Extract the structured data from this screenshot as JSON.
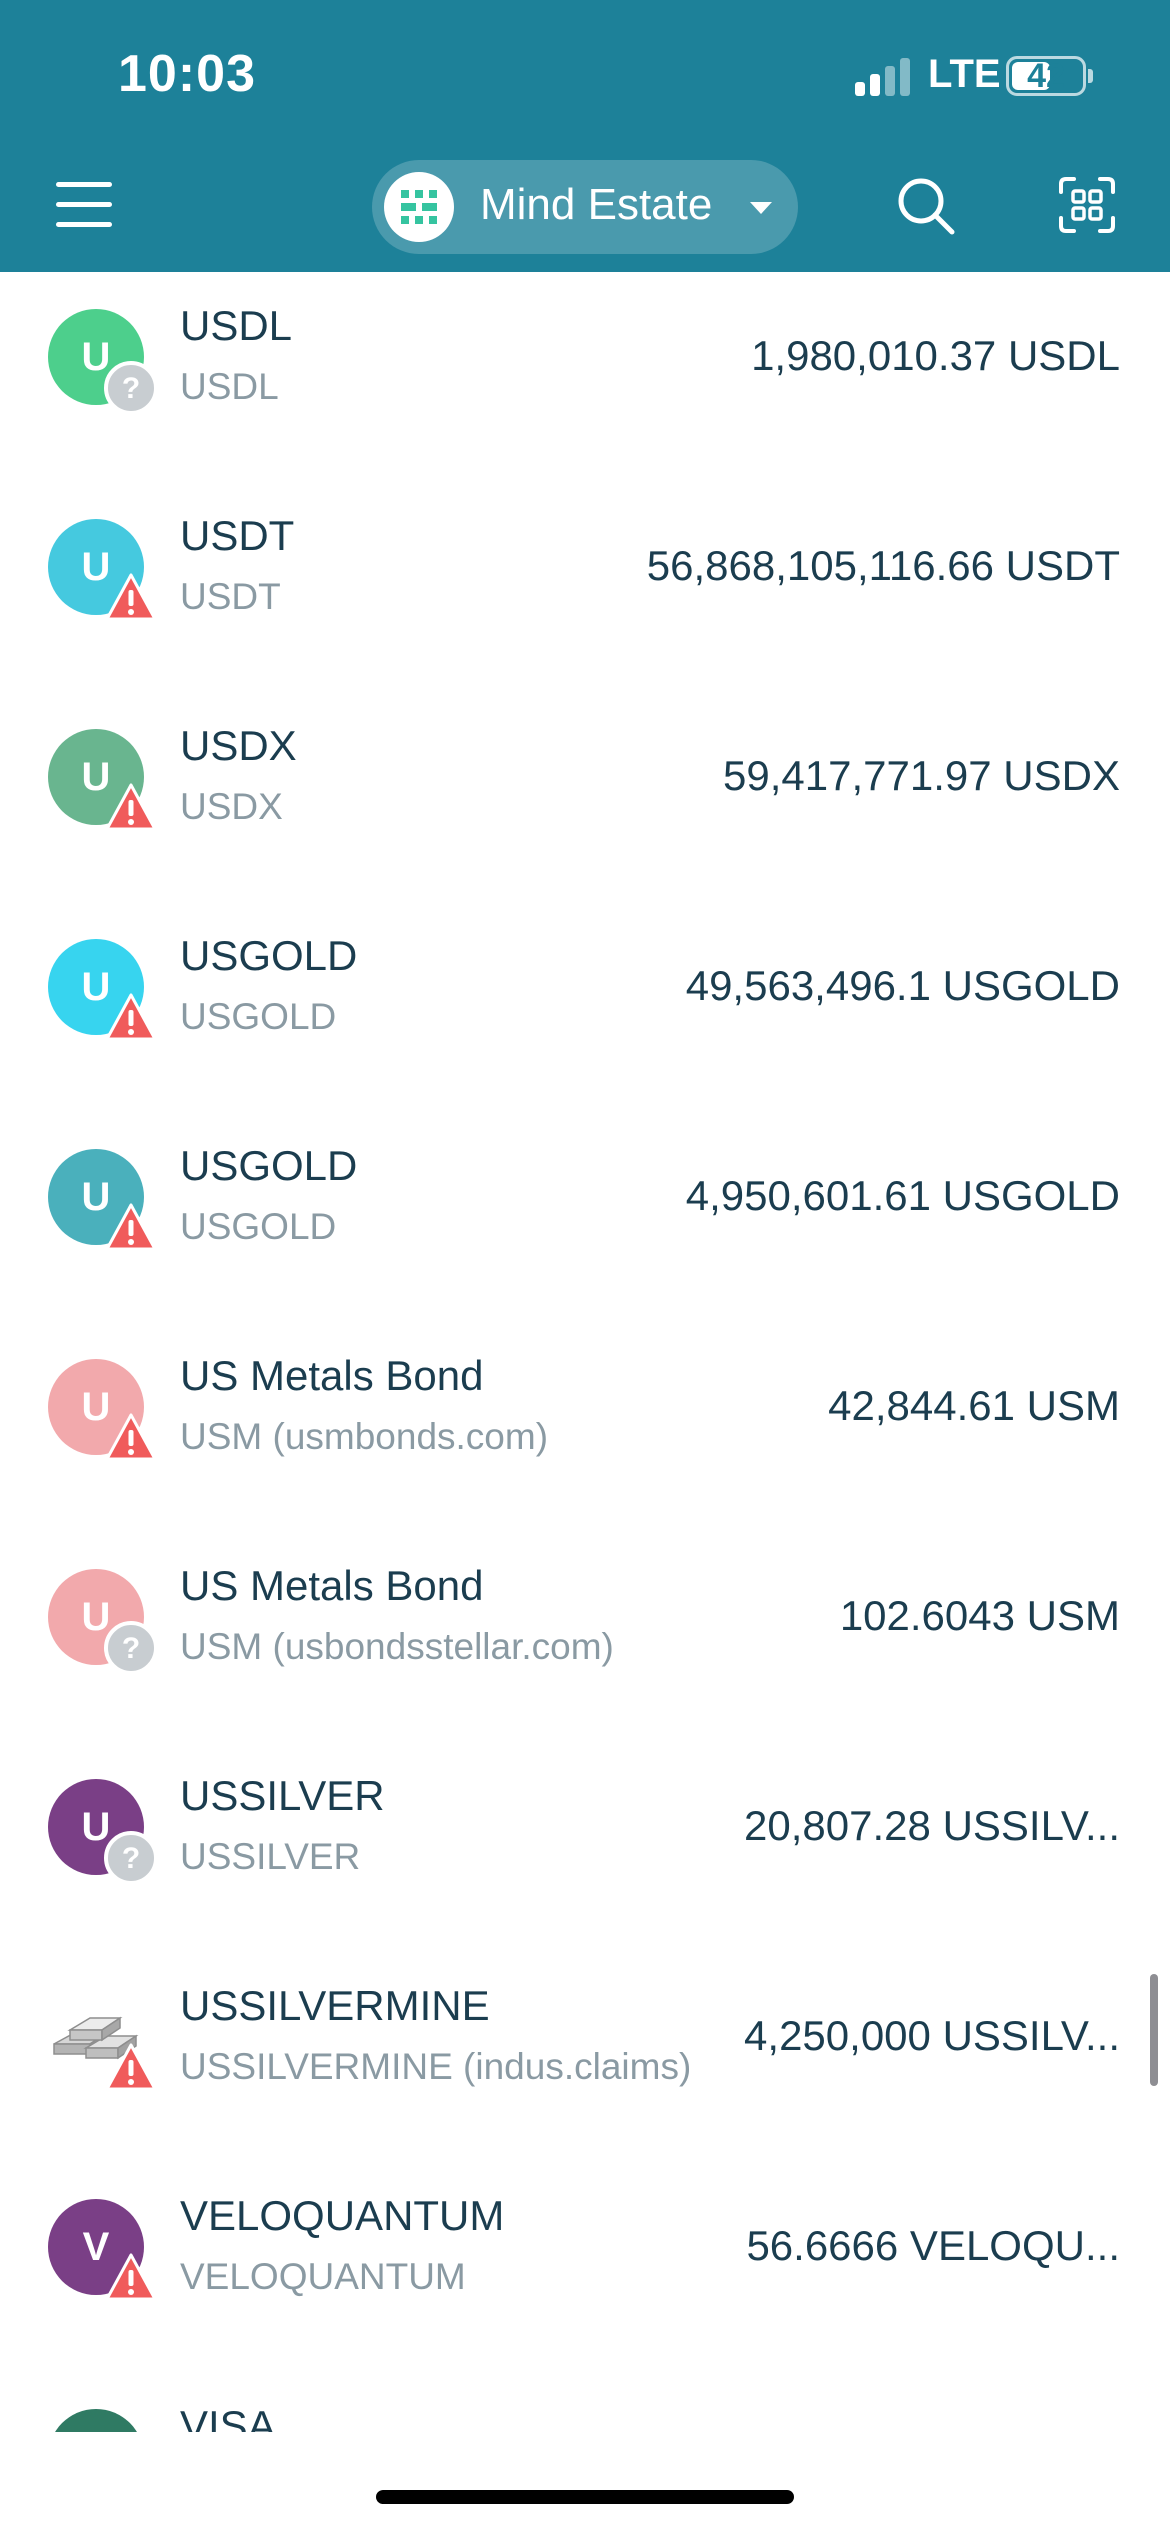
{
  "status_bar": {
    "time": "10:03",
    "network": "LTE",
    "battery": "42"
  },
  "header": {
    "account_name": "Mind Estate"
  },
  "assets": [
    {
      "name": "USDL",
      "sub": "USDL",
      "balance": "1,980,010.37 USDL",
      "icon_letter": "U",
      "color": "#4dcf8c",
      "badge": "question"
    },
    {
      "name": "USDT",
      "sub": "USDT",
      "balance": "56,868,105,116.66 USDT",
      "icon_letter": "U",
      "color": "#45c9df",
      "badge": "warning"
    },
    {
      "name": "USDX",
      "sub": "USDX",
      "balance": "59,417,771.97 USDX",
      "icon_letter": "U",
      "color": "#69b58f",
      "badge": "warning"
    },
    {
      "name": "USGOLD",
      "sub": "USGOLD",
      "balance": "49,563,496.1 USGOLD",
      "icon_letter": "U",
      "color": "#37d4ef",
      "badge": "warning"
    },
    {
      "name": "USGOLD",
      "sub": "USGOLD",
      "balance": "4,950,601.61 USGOLD",
      "icon_letter": "U",
      "color": "#4ab0bc",
      "badge": "warning"
    },
    {
      "name": "US Metals Bond",
      "sub": "USM (usmbonds.com)",
      "balance": "42,844.61 USM",
      "icon_letter": "U",
      "color": "#f2a9ac",
      "badge": "warning"
    },
    {
      "name": "US Metals Bond",
      "sub": "USM (usbondsstellar.com)",
      "balance": "102.6043 USM",
      "icon_letter": "U",
      "color": "#f2a9ac",
      "badge": "question"
    },
    {
      "name": "USSILVER",
      "sub": "USSILVER",
      "balance": "20,807.28 USSILV...",
      "icon_letter": "U",
      "color": "#7a3f86",
      "badge": "question"
    },
    {
      "name": "USSILVERMINE",
      "sub": "USSILVERMINE (indus.claims)",
      "balance": "4,250,000 USSILV...",
      "icon_letter": "",
      "icon": "silver-bars-icon",
      "color": "#9a9a9a",
      "badge": "warning"
    },
    {
      "name": "VELOQUANTUM",
      "sub": "VELOQUANTUM",
      "balance": "56.6666 VELOQU...",
      "icon_letter": "V",
      "color": "#7a3f86",
      "badge": "warning"
    },
    {
      "name": "VISA",
      "sub": "",
      "balance": "",
      "icon_letter": "",
      "color": "#2f7a63",
      "badge": ""
    }
  ],
  "colors": {
    "header": "#1d8199",
    "warning": "#f05b5b",
    "question": "#c8cdd1",
    "text": "#1b3d4f",
    "subtext": "#8a9aa3"
  }
}
